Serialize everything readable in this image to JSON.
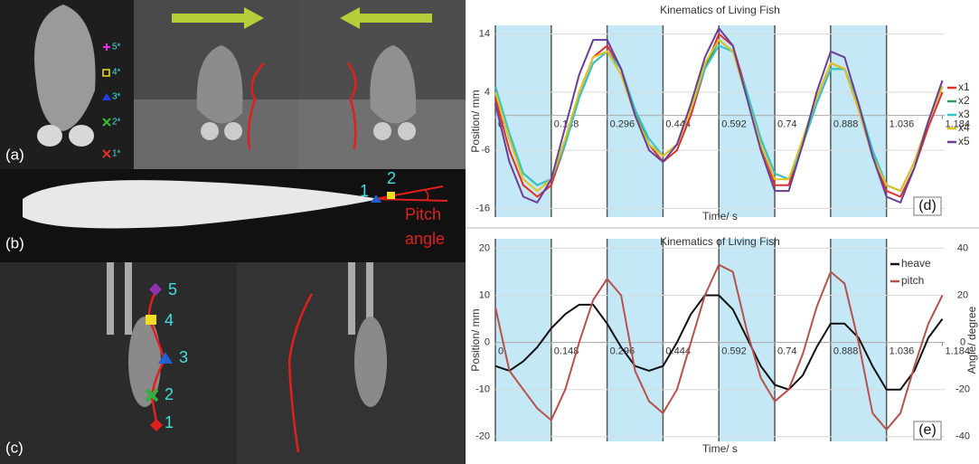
{
  "panels": {
    "a": {
      "label": "(a)",
      "markers": [
        "5*",
        "4*",
        "3*",
        "2*",
        "1*"
      ]
    },
    "b": {
      "label": "(b)",
      "markers": [
        "1",
        "2"
      ],
      "annotation": [
        "Pitch",
        "angle"
      ]
    },
    "c": {
      "label": "(c)",
      "markers": [
        "5",
        "4",
        "3",
        "2",
        "1"
      ]
    }
  },
  "chart_data": [
    {
      "type": "line",
      "title": "Kinematics of Living Fish",
      "x_label": "Time/ s",
      "y_label": "Position/ mm",
      "panel_label": "(d)",
      "x": [
        0,
        0.037,
        0.074,
        0.111,
        0.148,
        0.185,
        0.222,
        0.259,
        0.296,
        0.333,
        0.37,
        0.407,
        0.444,
        0.481,
        0.518,
        0.555,
        0.592,
        0.629,
        0.666,
        0.703,
        0.74,
        0.777,
        0.814,
        0.851,
        0.888,
        0.925,
        0.962,
        0.999,
        1.036,
        1.073,
        1.11,
        1.147,
        1.184
      ],
      "series": [
        {
          "name": "x1",
          "color": "#e0302a",
          "values": [
            3,
            -6,
            -12,
            -14,
            -12,
            -5,
            4,
            10,
            12,
            8,
            1,
            -5,
            -8,
            -6,
            0,
            8,
            14,
            12,
            4,
            -5,
            -12,
            -12,
            -5,
            3,
            9,
            8,
            1,
            -7,
            -13,
            -14,
            -9,
            -2,
            4
          ]
        },
        {
          "name": "x2",
          "color": "#2e9a5a",
          "values": [
            4,
            -4,
            -10,
            -12,
            -11,
            -5,
            3,
            9,
            11,
            8,
            1,
            -5,
            -7,
            -5,
            1,
            8,
            13,
            11,
            4,
            -4,
            -10,
            -11,
            -5,
            2,
            8,
            8,
            2,
            -6,
            -12,
            -13,
            -8,
            -1,
            5
          ]
        },
        {
          "name": "x3",
          "color": "#33c4c8",
          "values": [
            5,
            -3,
            -10,
            -12,
            -11,
            -5,
            3,
            9,
            11,
            8,
            1,
            -4,
            -7,
            -5,
            1,
            8,
            12,
            11,
            4,
            -4,
            -10,
            -11,
            -5,
            2,
            8,
            8,
            2,
            -6,
            -12,
            -13,
            -8,
            -1,
            5
          ]
        },
        {
          "name": "x4",
          "color": "#e3c21e",
          "values": [
            4,
            -4,
            -11,
            -13,
            -11,
            -4,
            4,
            10,
            11,
            7,
            0,
            -5,
            -7,
            -5,
            1,
            9,
            13,
            11,
            3,
            -5,
            -11,
            -11,
            -4,
            3,
            9,
            8,
            1,
            -7,
            -12,
            -13,
            -8,
            -1,
            5
          ]
        },
        {
          "name": "x5",
          "color": "#6a3d9a",
          "values": [
            2,
            -8,
            -14,
            -15,
            -11,
            -2,
            7,
            13,
            13,
            8,
            0,
            -6,
            -8,
            -5,
            2,
            10,
            15,
            12,
            3,
            -6,
            -13,
            -13,
            -5,
            4,
            11,
            10,
            2,
            -7,
            -14,
            -15,
            -9,
            -1,
            6
          ]
        }
      ],
      "xlim": [
        0,
        1.19
      ],
      "xticks": [
        0,
        0.148,
        0.296,
        0.444,
        0.592,
        0.74,
        0.888,
        1.036,
        1.184
      ],
      "ylim": [
        -17.5,
        15.5
      ],
      "yticks": [
        14,
        4,
        -6,
        -16
      ],
      "bands": [
        [
          0,
          0.148
        ],
        [
          0.296,
          0.444
        ],
        [
          0.592,
          0.74
        ],
        [
          0.888,
          1.036
        ]
      ],
      "band_color": "#c4e8f6",
      "grid": true,
      "legend": "right"
    },
    {
      "type": "line",
      "title": "Kinematics of Living Fish",
      "x_label": "Time/ s",
      "y_label": "Position/ mm",
      "y2_label": "Angle/ degree",
      "panel_label": "(e)",
      "x": [
        0,
        0.037,
        0.074,
        0.111,
        0.148,
        0.185,
        0.222,
        0.259,
        0.296,
        0.333,
        0.37,
        0.407,
        0.444,
        0.481,
        0.518,
        0.555,
        0.592,
        0.629,
        0.666,
        0.703,
        0.74,
        0.777,
        0.814,
        0.851,
        0.888,
        0.925,
        0.962,
        0.999,
        1.036,
        1.073,
        1.11,
        1.147,
        1.184
      ],
      "series": [
        {
          "name": "heave",
          "color": "#111111",
          "values": [
            -5,
            -6,
            -4,
            -1,
            3,
            6,
            8,
            8,
            4,
            -1,
            -5,
            -6,
            -5,
            0,
            6,
            10,
            10,
            7,
            1,
            -5,
            -9,
            -10,
            -7,
            -1,
            4,
            4,
            1,
            -5,
            -10,
            -10,
            -6,
            1,
            5
          ]
        },
        {
          "name": "pitch",
          "color": "#b9514b",
          "axis": "y2",
          "values": [
            15,
            -12,
            -20,
            -28,
            -33,
            -20,
            0,
            18,
            27,
            20,
            -12,
            -25,
            -30,
            -20,
            0,
            20,
            33,
            30,
            5,
            -15,
            -25,
            -20,
            -5,
            15,
            30,
            25,
            0,
            -30,
            -37,
            -30,
            -10,
            8,
            20
          ]
        }
      ],
      "xlim": [
        0,
        1.19
      ],
      "xticks": [
        0,
        0.148,
        0.296,
        0.444,
        0.592,
        0.74,
        0.888,
        1.036,
        1.184
      ],
      "ylim": [
        -21,
        22
      ],
      "yticks": [
        20,
        10,
        0,
        -10,
        -20
      ],
      "y2lim": [
        -42,
        44
      ],
      "y2ticks": [
        40,
        20,
        0,
        -20,
        -40
      ],
      "bands": [
        [
          0,
          0.148
        ],
        [
          0.296,
          0.444
        ],
        [
          0.592,
          0.74
        ],
        [
          0.888,
          1.036
        ]
      ],
      "band_color": "#c4e8f6",
      "grid": true,
      "legend": "top-right"
    }
  ]
}
